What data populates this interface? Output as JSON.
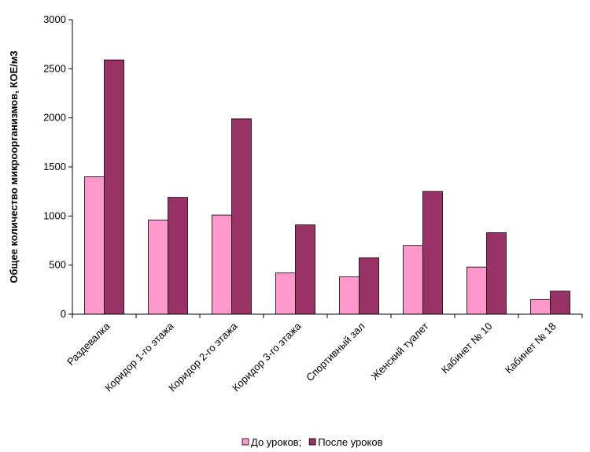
{
  "chart_data": {
    "type": "bar",
    "title": "",
    "xlabel": "",
    "ylabel": "Общее количество микроорганизмов, КОЕ/м3",
    "ylim": [
      0,
      3000
    ],
    "yticks": [
      0,
      500,
      1000,
      1500,
      2000,
      2500,
      3000
    ],
    "grid": false,
    "legend_position": "bottom",
    "categories": [
      "Раздевалка",
      "Коридор 1-го этажа",
      "Коридор 2-го этажа",
      "Коридор 3-го этажа",
      "Спортивный зал",
      "Женский туалет",
      "Кабинет № 10",
      "Кабинет № 18"
    ],
    "series": [
      {
        "name": "До уроков;",
        "color": "#ff99cc",
        "values": [
          1400,
          960,
          1010,
          420,
          380,
          700,
          480,
          150
        ]
      },
      {
        "name": "После уроков",
        "color": "#993366",
        "values": [
          2590,
          1190,
          1990,
          910,
          575,
          1250,
          830,
          235
        ]
      }
    ]
  }
}
